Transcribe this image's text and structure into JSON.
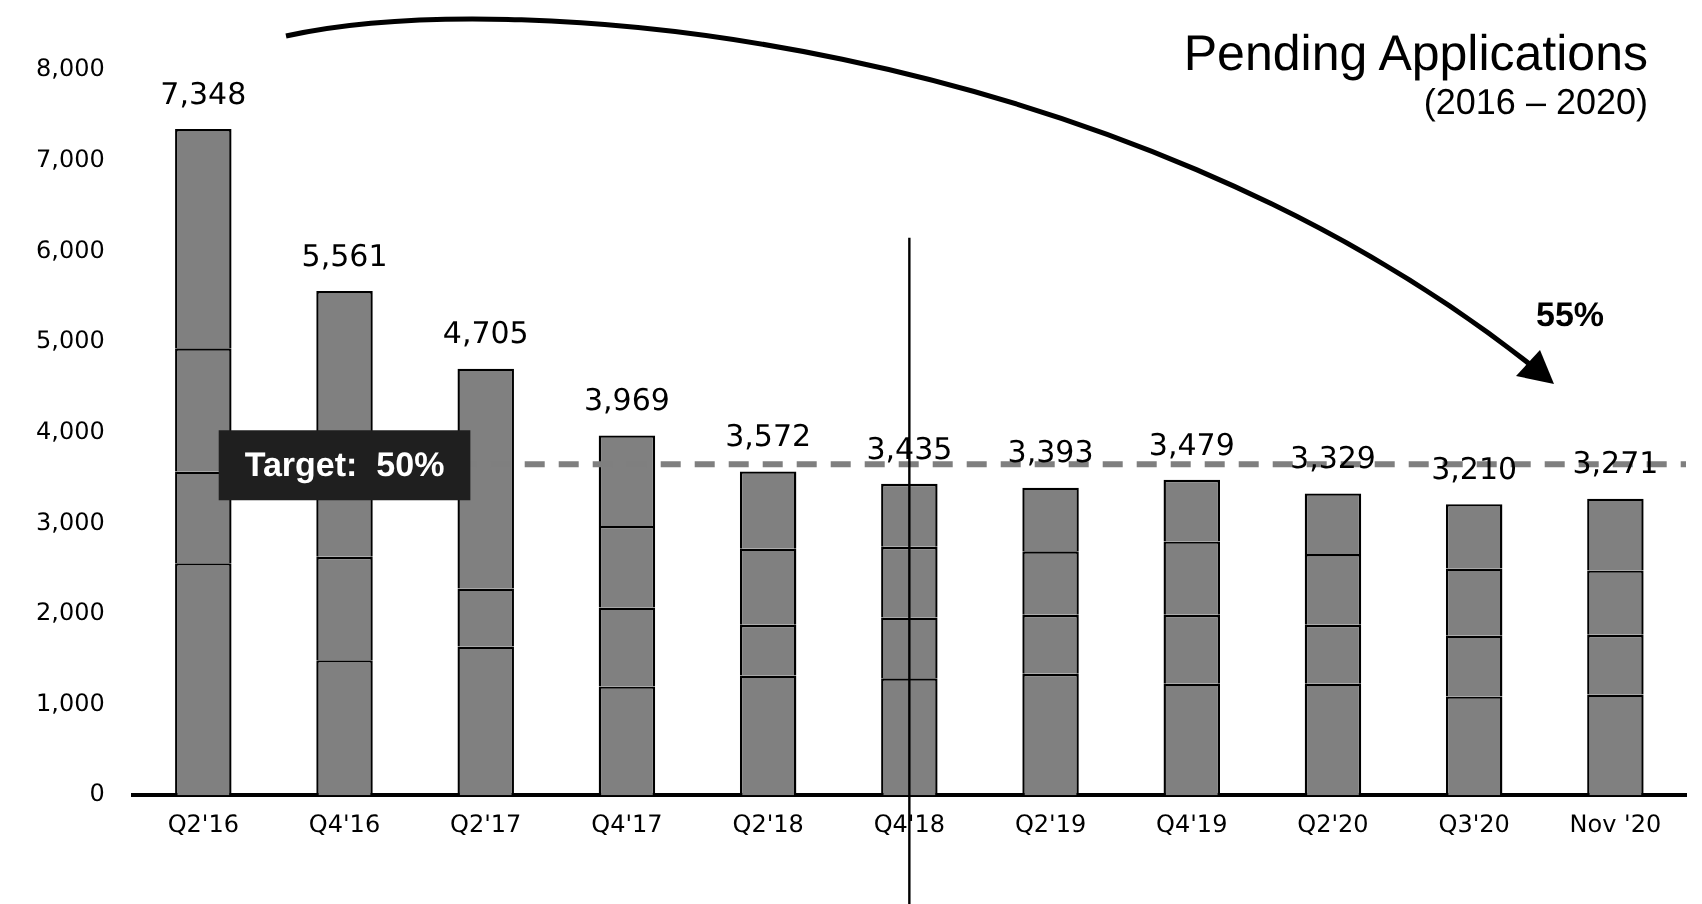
{
  "chart_data": {
    "type": "bar",
    "title": "Pending Applications",
    "subtitle": "(2016 – 2020)",
    "stacked": true,
    "categories": [
      "Q2'16",
      "Q4'16",
      "Q2'17",
      "Q4'17",
      "Q2'18",
      "Q4'18",
      "Q2'19",
      "Q4'19",
      "Q2'20",
      "Q3'20",
      "Nov '20"
    ],
    "series": [
      {
        "color": "#808080",
        "values": [
          2560,
          1490,
          1640,
          1200,
          1320,
          1290,
          1340,
          1230,
          1230,
          1090,
          1110
        ]
      },
      {
        "color": "#808080",
        "values": [
          1010,
          1140,
          640,
          870,
          560,
          670,
          650,
          760,
          650,
          670,
          660
        ]
      },
      {
        "color": "#808080",
        "values": [
          1360,
          null,
          null,
          900,
          840,
          780,
          700,
          810,
          780,
          740,
          710
        ]
      },
      {
        "color": "#808080",
        "values": [
          2418,
          2931,
          2425,
          999,
          852,
          695,
          703,
          679,
          669,
          710,
          791
        ]
      }
    ],
    "totals": [
      "7,348",
      "5,561",
      "4,705",
      "3,969",
      "3,572",
      "3,435",
      "3,393",
      "3,479",
      "3,329",
      "3,210",
      "3,271"
    ],
    "ylim": [
      0,
      8000
    ],
    "yticks": [
      0,
      {
        "value": 1000,
        "label": "1,000"
      },
      {
        "value": 2000,
        "label": "2,000"
      },
      {
        "value": 3000,
        "label": "3,000"
      },
      {
        "value": 4000,
        "label": "4,000"
      },
      {
        "value": 5000,
        "label": "5,000"
      },
      {
        "value": 6000,
        "label": "6,000"
      },
      {
        "value": 7000,
        "label": "7,000"
      },
      {
        "value": 8000,
        "label": "8,000"
      }
    ],
    "ref_lines": [
      {
        "axis": "y",
        "value": 3650,
        "color": "#7f7f7f",
        "line_style": "dashed"
      },
      {
        "axis": "x",
        "value": "Q4'18",
        "color": "#000000",
        "line_style": "solid"
      }
    ],
    "annotations": [
      "Target:  50%",
      "55%"
    ],
    "grid": false,
    "legend": false
  }
}
